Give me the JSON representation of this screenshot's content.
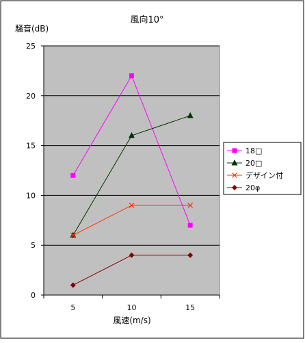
{
  "chart_data": {
    "type": "line",
    "title": "風向10°",
    "ylabel": "騒音(dB)",
    "xlabel": "風速(m/s)",
    "categories": [
      "5",
      "10",
      "15"
    ],
    "ylim": [
      0,
      25
    ],
    "yticks": [
      0,
      5,
      10,
      15,
      20,
      25
    ],
    "grid": true,
    "legend_position": "right",
    "plot_background": "#c0c0c0",
    "series": [
      {
        "name": "18□",
        "values": [
          12,
          22,
          7
        ],
        "color": "#ff00ff",
        "marker": "square"
      },
      {
        "name": "20□",
        "values": [
          6,
          16,
          18
        ],
        "color": "#003300",
        "marker": "triangle"
      },
      {
        "name": "デザイン付",
        "values": [
          6,
          9,
          9
        ],
        "color": "#ff3300",
        "marker": "x"
      },
      {
        "name": "20φ",
        "values": [
          1,
          4,
          4
        ],
        "color": "#800000",
        "marker": "diamond"
      }
    ]
  }
}
